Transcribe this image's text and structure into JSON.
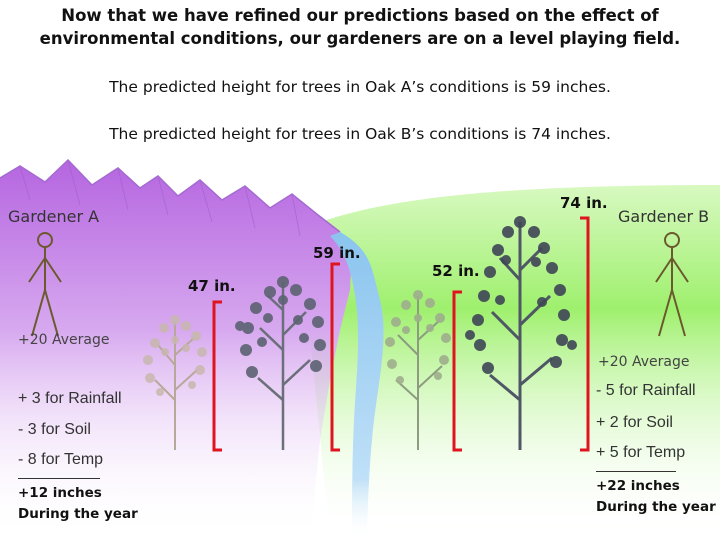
{
  "title": "Now that we have refined our predictions based on the effect of environmental conditions, our gardeners are on a level playing field.",
  "predictions": [
    "The predicted height for trees in Oak A’s conditions is 59 inches.",
    "The predicted height for trees in Oak B’s conditions is 74 inches."
  ],
  "gardener_a": {
    "name": "Gardener A",
    "average": "+20 Average",
    "factors": [
      "+ 3 for Rainfall",
      "- 3 for Soil",
      "- 8 for Temp"
    ],
    "total_line1": "+12 inches",
    "total_line2": "During the year"
  },
  "gardener_b": {
    "name": "Gardener B",
    "average": "+20 Average",
    "factors": [
      "- 5 for Rainfall",
      "+ 2 for Soil",
      "+ 5 for Temp"
    ],
    "total_line1": "+22 inches",
    "total_line2": "During the year"
  },
  "height_labels": {
    "a_before": "47 in.",
    "a_after": "59 in.",
    "b_before": "52 in.",
    "b_after": "74 in."
  },
  "colors": {
    "mountains": "#c98ee6",
    "mountain_ridge": "#9a5ec8",
    "field": "#9ff06e",
    "river": "#8ac4ee",
    "bracket": "#e0141e",
    "figure": "#6b5a2e"
  }
}
